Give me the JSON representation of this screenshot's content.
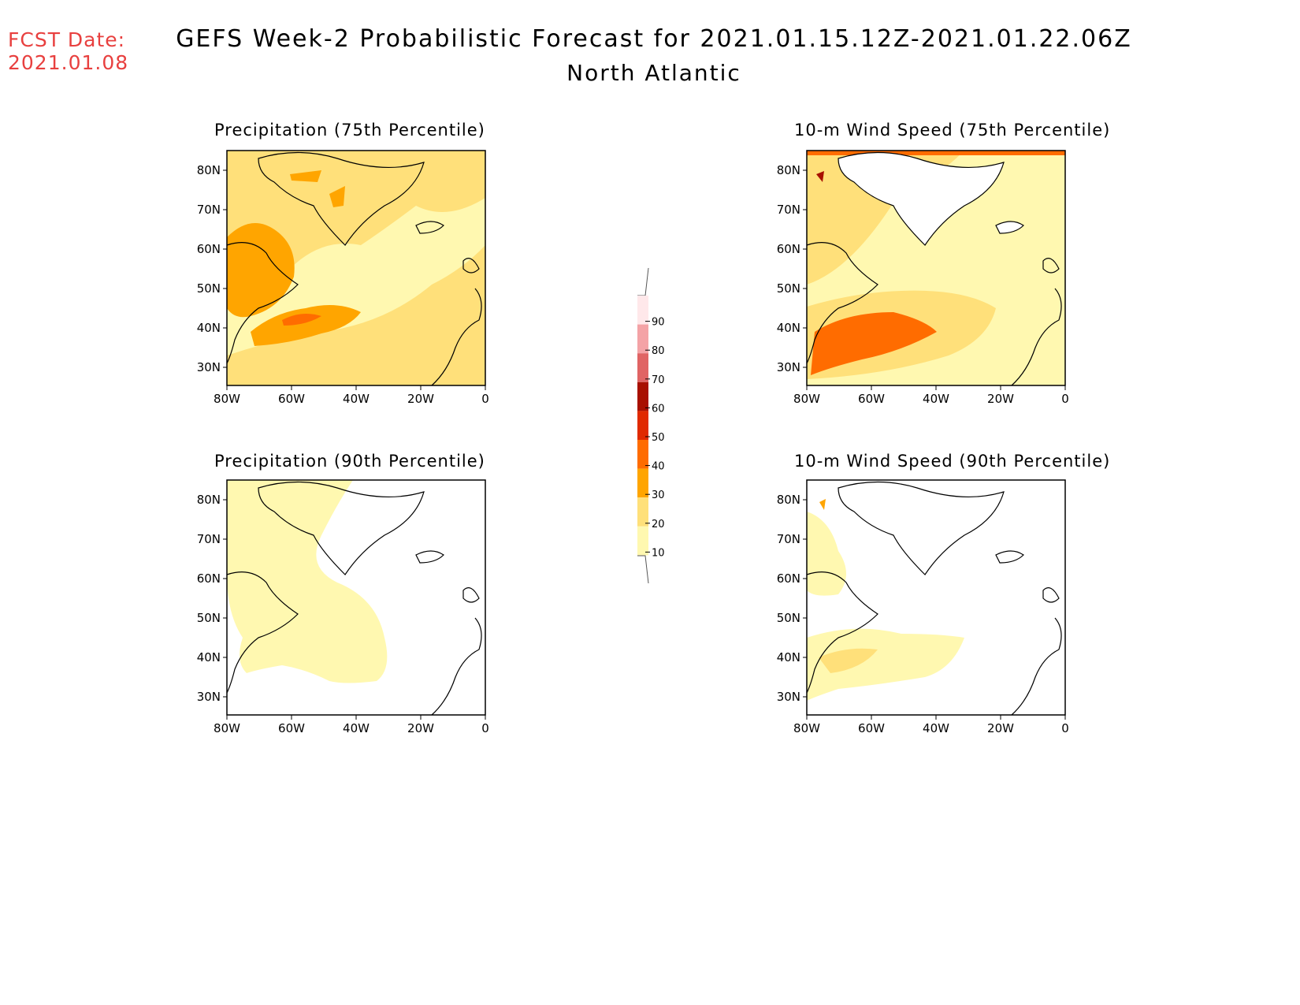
{
  "header": {
    "fcst_date_label": "FCST Date:",
    "fcst_date_value": "2021.01.08",
    "title": "GEFS Week-2 Probabilistic Forecast for 2021.01.15.12Z-2021.01.22.06Z",
    "region": "North Atlantic",
    "fcst_color": "#e8403f"
  },
  "axes": {
    "lat_labels": [
      "80N",
      "70N",
      "60N",
      "50N",
      "40N",
      "30N"
    ],
    "lon_labels": [
      "80W",
      "60W",
      "40W",
      "20W",
      "0"
    ]
  },
  "panels": [
    {
      "id": "precip75",
      "title": "Precipitation (75th Percentile)"
    },
    {
      "id": "wind75",
      "title": "10-m Wind Speed (75th Percentile)"
    },
    {
      "id": "precip90",
      "title": "Precipitation (90th Percentile)"
    },
    {
      "id": "wind90",
      "title": "10-m Wind Speed (90th Percentile)"
    }
  ],
  "colorbar": {
    "labels": [
      "90",
      "80",
      "70",
      "60",
      "50",
      "40",
      "30",
      "20",
      "10"
    ],
    "colors": [
      "#ffe8ea",
      "#f4a3a6",
      "#e06464",
      "#a81000",
      "#e02a00",
      "#ff6c00",
      "#ffa500",
      "#ffe07a",
      "#fff8b0"
    ]
  }
}
